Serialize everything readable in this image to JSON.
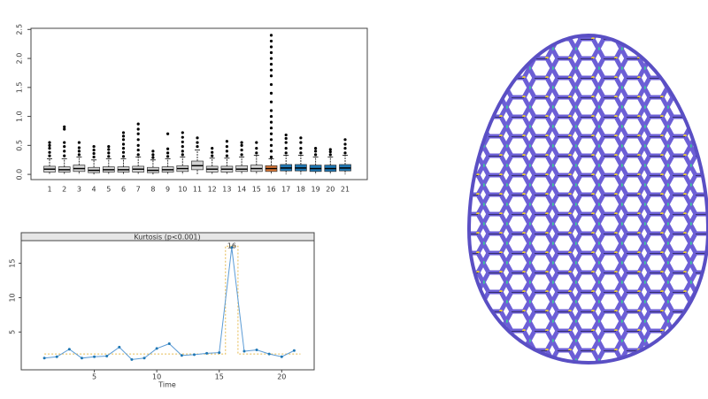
{
  "chart_data": [
    {
      "type": "box",
      "categories": [
        "1",
        "2",
        "3",
        "4",
        "5",
        "6",
        "7",
        "8",
        "9",
        "10",
        "11",
        "12",
        "13",
        "14",
        "15",
        "16",
        "17",
        "18",
        "19",
        "20",
        "21"
      ],
      "colors": [
        "#d3d3d3",
        "#d3d3d3",
        "#d3d3d3",
        "#d3d3d3",
        "#d3d3d3",
        "#d3d3d3",
        "#d3d3d3",
        "#d3d3d3",
        "#d3d3d3",
        "#d3d3d3",
        "#d3d3d3",
        "#d3d3d3",
        "#d3d3d3",
        "#d3d3d3",
        "#d3d3d3",
        "#e07b39",
        "#1f77b4",
        "#1f77b4",
        "#1f77b4",
        "#1f77b4",
        "#1f77b4"
      ],
      "stats": [
        [
          0,
          0.04,
          0.09,
          0.14,
          0.27
        ],
        [
          0,
          0.04,
          0.08,
          0.13,
          0.27
        ],
        [
          0,
          0.05,
          0.1,
          0.16,
          0.3
        ],
        [
          0,
          0.03,
          0.07,
          0.12,
          0.25
        ],
        [
          0,
          0.04,
          0.08,
          0.13,
          0.27
        ],
        [
          0,
          0.04,
          0.08,
          0.13,
          0.27
        ],
        [
          0,
          0.04,
          0.09,
          0.14,
          0.3
        ],
        [
          0,
          0.03,
          0.07,
          0.12,
          0.25
        ],
        [
          0,
          0.04,
          0.08,
          0.13,
          0.27
        ],
        [
          0,
          0.05,
          0.1,
          0.15,
          0.3
        ],
        [
          0,
          0.08,
          0.15,
          0.23,
          0.42
        ],
        [
          0,
          0.04,
          0.09,
          0.14,
          0.28
        ],
        [
          0,
          0.04,
          0.09,
          0.14,
          0.28
        ],
        [
          0,
          0.05,
          0.09,
          0.15,
          0.3
        ],
        [
          0,
          0.05,
          0.1,
          0.16,
          0.33
        ],
        [
          0,
          0.05,
          0.1,
          0.15,
          0.27
        ],
        [
          0,
          0.06,
          0.11,
          0.17,
          0.33
        ],
        [
          0,
          0.06,
          0.11,
          0.17,
          0.33
        ],
        [
          0,
          0.05,
          0.1,
          0.16,
          0.3
        ],
        [
          0,
          0.05,
          0.1,
          0.16,
          0.3
        ],
        [
          0,
          0.06,
          0.11,
          0.17,
          0.33
        ]
      ],
      "outliers": [
        [
          0.32,
          0.38,
          0.45,
          0.5,
          0.55
        ],
        [
          0.32,
          0.4,
          0.48,
          0.55,
          0.78,
          0.82
        ],
        [
          0.34,
          0.4,
          0.46,
          0.55
        ],
        [
          0.3,
          0.36,
          0.42,
          0.48
        ],
        [
          0.31,
          0.37,
          0.43,
          0.48
        ],
        [
          0.31,
          0.38,
          0.45,
          0.52,
          0.6,
          0.66,
          0.72
        ],
        [
          0.34,
          0.42,
          0.5,
          0.6,
          0.7,
          0.78,
          0.87
        ],
        [
          0.29,
          0.34,
          0.4
        ],
        [
          0.31,
          0.37,
          0.44,
          0.7
        ],
        [
          0.34,
          0.4,
          0.48,
          0.56,
          0.64,
          0.72
        ],
        [
          0.48,
          0.55,
          0.63
        ],
        [
          0.32,
          0.38,
          0.45
        ],
        [
          0.32,
          0.4,
          0.48,
          0.57
        ],
        [
          0.34,
          0.42,
          0.5,
          0.55
        ],
        [
          0.37,
          0.45,
          0.55
        ],
        [
          0.3,
          0.4,
          0.5,
          0.6,
          0.7,
          0.8,
          0.9,
          1.0,
          1.1,
          1.25,
          1.4,
          1.55,
          1.7,
          1.8,
          1.9,
          2.0,
          2.1,
          2.2,
          2.3,
          2.4
        ],
        [
          0.37,
          0.45,
          0.55,
          0.62,
          0.68
        ],
        [
          0.37,
          0.45,
          0.55,
          0.63
        ],
        [
          0.34,
          0.4,
          0.45
        ],
        [
          0.34,
          0.39,
          0.43
        ],
        [
          0.37,
          0.45,
          0.52,
          0.6
        ]
      ],
      "ylim": [
        -0.09,
        2.52
      ],
      "yticks": [
        {
          "value": 0,
          "label": "0.0"
        },
        0.5,
        {
          "value": 1,
          "label": "1.0"
        },
        1.5,
        {
          "value": 2,
          "label": "2.0"
        },
        2.5
      ]
    },
    {
      "type": "line",
      "title": "Kurtosis (p<0.001)",
      "xlabel": "Time",
      "series": [
        {
          "color": "#5b9bd5",
          "x": [
            1,
            2,
            3,
            4,
            5,
            6,
            7,
            8,
            9,
            10,
            11,
            12,
            13,
            14,
            15,
            16,
            17,
            18,
            19,
            20,
            21
          ],
          "values": [
            1.2,
            1.4,
            2.5,
            1.2,
            1.4,
            1.5,
            2.8,
            1.0,
            1.2,
            2.6,
            3.3,
            1.6,
            1.7,
            1.9,
            2.0,
            17.3,
            2.2,
            2.4,
            1.8,
            1.4,
            2.3
          ]
        },
        {
          "color": "#e5b94e",
          "x": [
            1,
            15.5,
            15.5,
            16.5,
            16.5,
            21.5
          ],
          "values": [
            1.8,
            1.8,
            17.5,
            17.5,
            1.8,
            1.8
          ]
        }
      ],
      "annotations": [
        {
          "text": "16",
          "x": 16,
          "y": 17.3
        }
      ],
      "xlim": [
        -0.85,
        22.6
      ],
      "ylim": [
        -0.5,
        18.3
      ],
      "xticks": [
        5,
        10,
        15,
        20
      ],
      "yticks": [
        5,
        10,
        15
      ]
    }
  ]
}
